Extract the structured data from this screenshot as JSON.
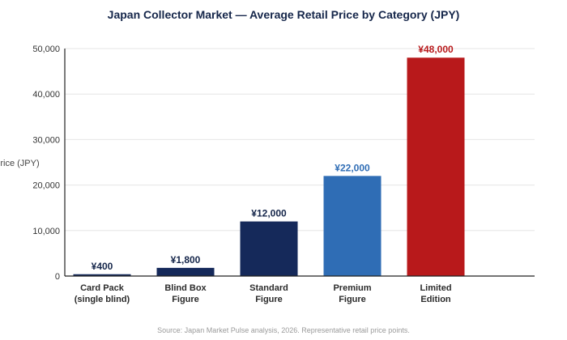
{
  "chart_data": {
    "type": "bar",
    "title": "Japan Collector Market — Average Retail Price by Category (JPY)",
    "ylabel": "Average Retail Price (JPY)",
    "ylim": [
      0,
      50000
    ],
    "yticks": [
      0,
      10000,
      20000,
      30000,
      40000,
      50000
    ],
    "ytick_labels": [
      "0",
      "10,000",
      "20,000",
      "30,000",
      "40,000",
      "50,000"
    ],
    "grid": true,
    "categories": [
      [
        "Card Pack",
        "(single blind)"
      ],
      [
        "Blind Box",
        "Figure"
      ],
      [
        "Standard",
        "Figure"
      ],
      [
        "Premium",
        "Figure"
      ],
      [
        "Limited",
        "Edition"
      ]
    ],
    "values": [
      400,
      1800,
      12000,
      22000,
      48000
    ],
    "data_labels": [
      "¥400",
      "¥1,800",
      "¥12,000",
      "¥22,000",
      "¥48,000"
    ],
    "bar_colors": [
      "#15295a",
      "#15295a",
      "#15295a",
      "#2f6db5",
      "#b8191b"
    ],
    "label_colors": [
      "#15264a",
      "#15264a",
      "#15264a",
      "#2f6db5",
      "#b8191b"
    ],
    "source": "Source: Japan Market Pulse analysis, 2026. Representative retail price points."
  }
}
